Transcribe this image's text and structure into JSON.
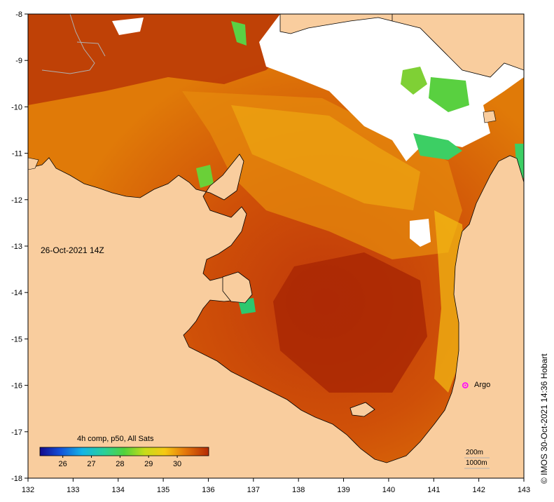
{
  "map": {
    "date_label": "26-Oct-2021 14Z",
    "colorbar_title": "4h comp, p50, All Sats",
    "colorbar_ticks": [
      "26",
      "27",
      "28",
      "29",
      "30"
    ],
    "colorbar_min": 25.2,
    "colorbar_max": 31.1,
    "credit": "© IMOS 30-Oct-2021 14:36 Hobart",
    "depth_200_label": "200m",
    "depth_1000_label": "1000m",
    "argo_label": "Argo",
    "argo_lon": 141.7,
    "argo_lat": -16.0,
    "x_ticks": [
      "132",
      "133",
      "134",
      "135",
      "136",
      "137",
      "138",
      "139",
      "140",
      "141",
      "142",
      "143"
    ],
    "y_ticks": [
      "-8",
      "-9",
      "-10",
      "-11",
      "-12",
      "-13",
      "-14",
      "-15",
      "-16",
      "-17",
      "-18"
    ],
    "lon_range": [
      132,
      143
    ],
    "lat_range": [
      -18,
      -8
    ]
  },
  "colors": {
    "land": "#f9cd9e",
    "cloud": "#ffffff",
    "sst_hot": "#b82c05",
    "sst_mid": "#e88d0b",
    "sst_warm": "#f6c914",
    "sst_cool": "#42d25a",
    "argo": "#ff00ff"
  }
}
